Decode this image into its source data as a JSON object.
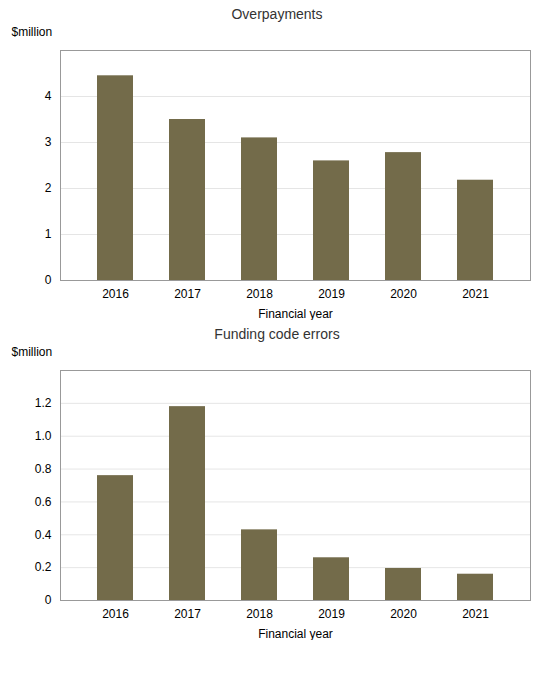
{
  "chart_data": [
    {
      "type": "bar",
      "title": "Overpayments",
      "categories": [
        "2016",
        "2017",
        "2018",
        "2019",
        "2020",
        "2021"
      ],
      "values": [
        4.45,
        3.5,
        3.1,
        2.6,
        2.78,
        2.18
      ],
      "color": "#736b4a",
      "xlabel": "Financial year",
      "ylabel": "$million",
      "ylim": [
        0,
        5.0
      ],
      "yticks": [
        0,
        1,
        2,
        3,
        4
      ],
      "grid": true
    },
    {
      "type": "bar",
      "title": "Funding code errors",
      "categories": [
        "2016",
        "2017",
        "2018",
        "2019",
        "2020",
        "2021"
      ],
      "values": [
        0.76,
        1.18,
        0.43,
        0.26,
        0.195,
        0.16
      ],
      "color": "#736b4a",
      "xlabel": "Financial year",
      "ylabel": "$million",
      "ylim": [
        0,
        1.4
      ],
      "yticks": [
        0,
        0.2,
        0.4,
        0.6,
        0.8,
        {
          "value": 1.0,
          "label": "1.0"
        },
        1.2
      ],
      "grid": true
    }
  ]
}
